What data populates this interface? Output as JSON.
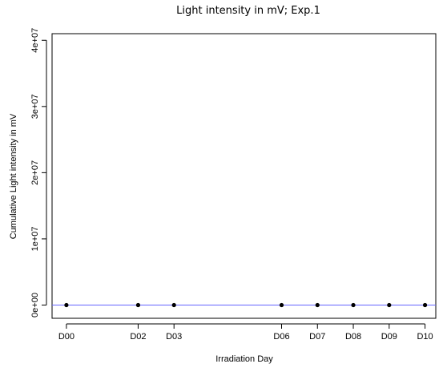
{
  "chart_data": {
    "type": "scatter",
    "title": "Light intensity in mV; Exp.1",
    "xlabel": "Irradiation Day",
    "ylabel": "Cumulative Light intensity in mV",
    "x_tick_labels": [
      "D00",
      "D02",
      "D03",
      "D06",
      "D07",
      "D08",
      "D09",
      "D10"
    ],
    "x_tick_values": [
      0,
      2,
      3,
      6,
      7,
      8,
      9,
      10
    ],
    "xlim": [
      -0.4,
      10.3
    ],
    "ylim": [
      -2000000,
      41000000
    ],
    "y_ticks": [
      0,
      10000000,
      20000000,
      30000000,
      40000000
    ],
    "y_tick_labels": [
      "0e+00",
      "1e+07",
      "2e+07",
      "3e+07",
      "4e+07"
    ],
    "points": [
      {
        "x": 0,
        "y": 0
      },
      {
        "x": 2,
        "y": 0
      },
      {
        "x": 3,
        "y": 0
      },
      {
        "x": 6,
        "y": 0
      },
      {
        "x": 7,
        "y": 0
      },
      {
        "x": 8,
        "y": 0
      },
      {
        "x": 9,
        "y": 0
      },
      {
        "x": 10,
        "y": 0
      }
    ],
    "reference_line": {
      "y": 0,
      "color": "#6666ff"
    },
    "point_color": "#000000",
    "grid": false
  }
}
